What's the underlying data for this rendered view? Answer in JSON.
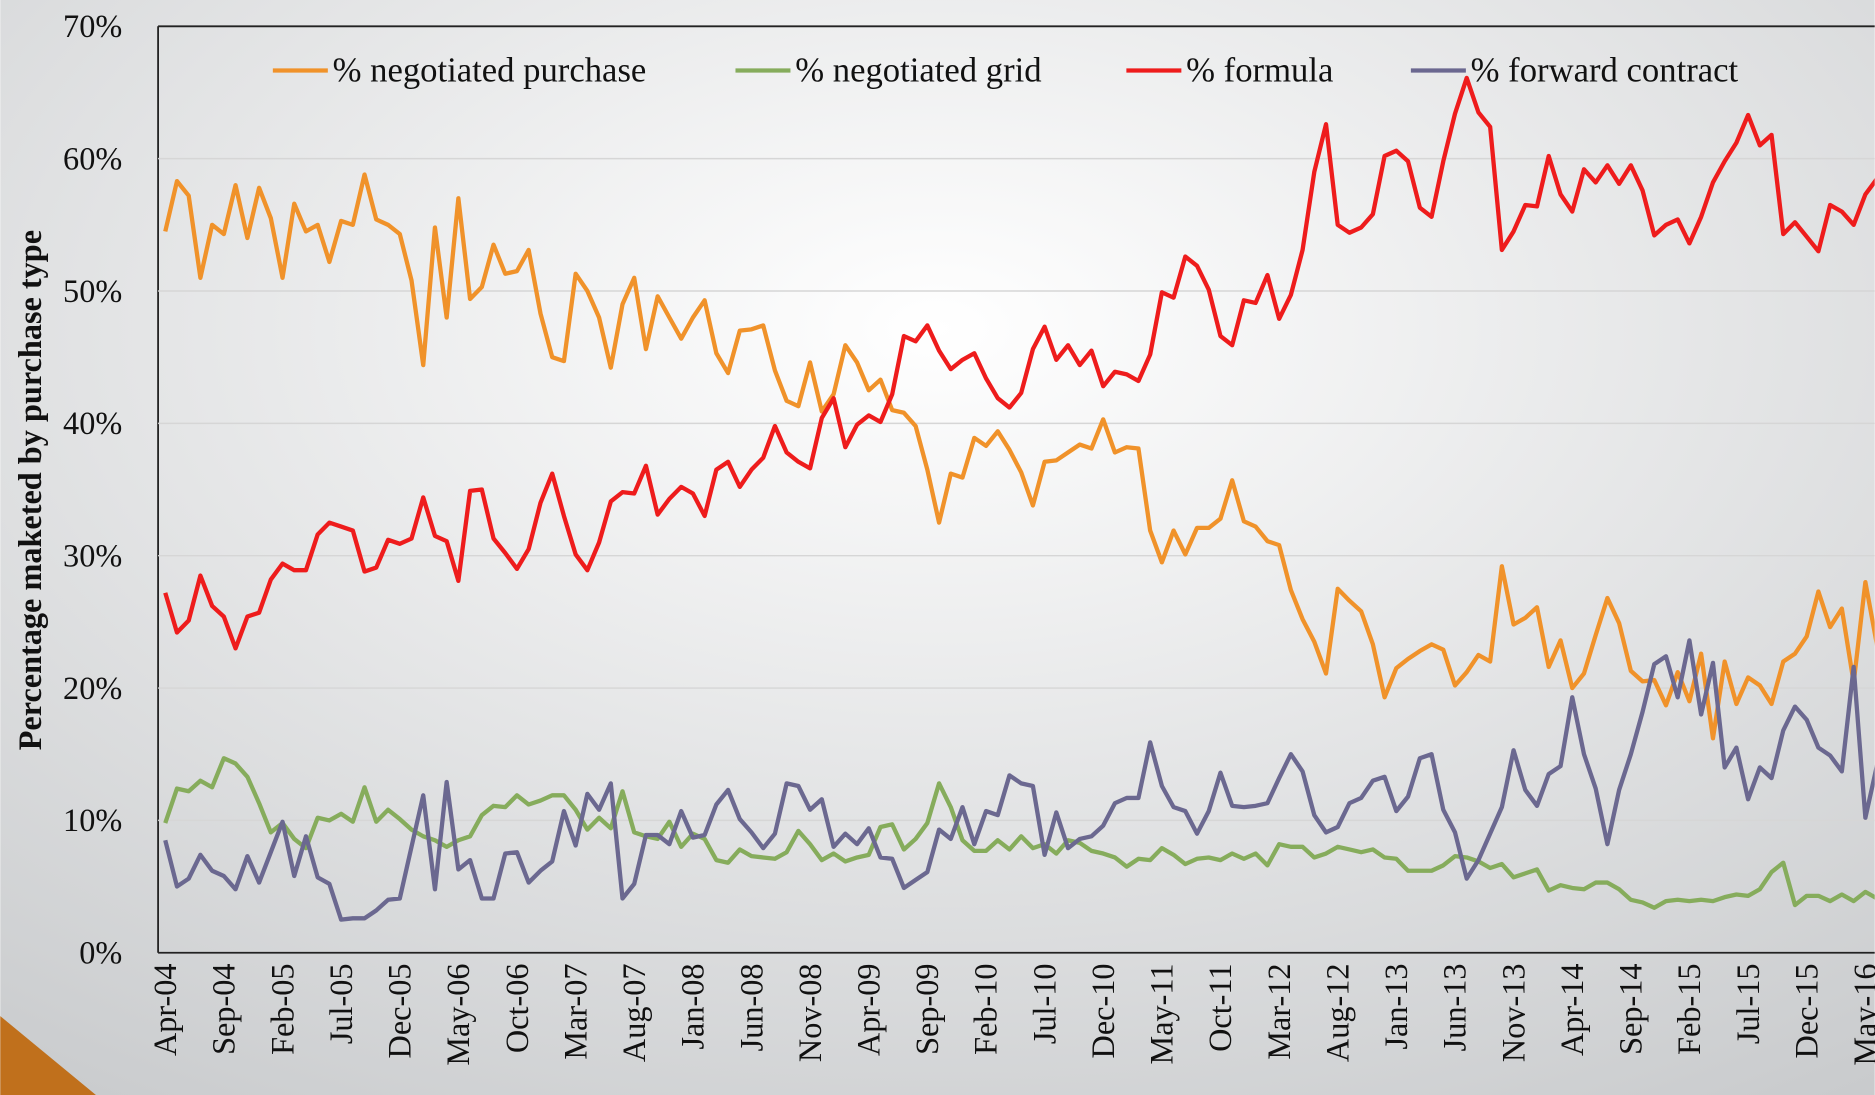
{
  "chart_data": {
    "type": "line",
    "y_label": "Percentage maketed by purchase type",
    "categories": [
      "Apr-04",
      null,
      null,
      null,
      null,
      "Sep-04",
      null,
      null,
      null,
      null,
      "Feb-05",
      null,
      null,
      null,
      null,
      "Jul-05",
      null,
      null,
      null,
      null,
      "Dec-05",
      null,
      null,
      null,
      null,
      "May-06",
      null,
      null,
      null,
      null,
      "Oct-06",
      null,
      null,
      null,
      null,
      "Mar-07",
      null,
      null,
      null,
      null,
      "Aug-07",
      null,
      null,
      null,
      null,
      "Jan-08",
      null,
      null,
      null,
      null,
      "Jun-08",
      null,
      null,
      null,
      null,
      "Nov-08",
      null,
      null,
      null,
      null,
      "Apr-09",
      null,
      null,
      null,
      null,
      "Sep-09",
      null,
      null,
      null,
      null,
      "Feb-10",
      null,
      null,
      null,
      null,
      "Jul-10",
      null,
      null,
      null,
      null,
      "Dec-10",
      null,
      null,
      null,
      null,
      "May-11",
      null,
      null,
      null,
      null,
      "Oct-11",
      null,
      null,
      null,
      null,
      "Mar-12",
      null,
      null,
      null,
      null,
      "Aug-12",
      null,
      null,
      null,
      null,
      "Jan-13",
      null,
      null,
      null,
      null,
      "Jun-13",
      null,
      null,
      null,
      null,
      "Nov-13",
      null,
      null,
      null,
      null,
      "Apr-14",
      null,
      null,
      null,
      null,
      "Sep-14",
      null,
      null,
      null,
      null,
      "Feb-15",
      null,
      null,
      null,
      null,
      "Jul-15",
      null,
      null,
      null,
      null,
      "Dec-15",
      null,
      null,
      null,
      null,
      "May-16",
      null
    ],
    "series": [
      {
        "name": "% negotiated purchase",
        "color": "#f0922a",
        "values": [
          54.5,
          58.3,
          57.2,
          51,
          55,
          54.3,
          58,
          54,
          57.8,
          55.5,
          51,
          56.6,
          54.5,
          55,
          52.2,
          55.3,
          55,
          58.8,
          55.4,
          55,
          54.3,
          50.8,
          44.4,
          54.8,
          48,
          57,
          49.4,
          50.3,
          53.5,
          51.3,
          51.5,
          53.1,
          48.3,
          45,
          44.7,
          51.3,
          50,
          48,
          44.2,
          49,
          51,
          45.6,
          49.6,
          48,
          46.4,
          48,
          49.3,
          45.3,
          43.8,
          47,
          47.1,
          47.4,
          44,
          41.7,
          41.3,
          44.6,
          40.9,
          42.2,
          45.9,
          44.6,
          42.5,
          43.3,
          41,
          40.8,
          39.8,
          36.5,
          32.5,
          36.2,
          35.9,
          38.9,
          38.3,
          39.4,
          38,
          36.3,
          33.8,
          37.1,
          37.2,
          37.8,
          38.4,
          38.1,
          40.3,
          37.8,
          38.2,
          38.1,
          31.9,
          29.5,
          31.9,
          30.1,
          32.1,
          32.1,
          32.8,
          35.7,
          32.6,
          32.2,
          31.1,
          30.8,
          27.4,
          25.2,
          23.5,
          21.1,
          27.5,
          26.6,
          25.8,
          23.3,
          19.3,
          21.5,
          22.2,
          22.8,
          23.3,
          22.9,
          20.2,
          21.2,
          22.5,
          22,
          29.2,
          24.8,
          25.3,
          26.1,
          21.6,
          23.6,
          20,
          21.1,
          24,
          26.8,
          24.9,
          21.3,
          20.5,
          20.6,
          18.7,
          21.2,
          19,
          22.6,
          16.2,
          22,
          18.8,
          20.8,
          20.2,
          18.8,
          22,
          22.6,
          23.9,
          27.3,
          24.6,
          26,
          20.4,
          28,
          23.2
        ]
      },
      {
        "name": "% negotiated grid",
        "color": "#86ac5c",
        "values": [
          9.8,
          12.4,
          12.2,
          13,
          12.5,
          14.7,
          14.3,
          13.3,
          11.3,
          9.1,
          9.8,
          8.6,
          7.9,
          10.2,
          10,
          10.5,
          9.9,
          12.5,
          9.9,
          10.8,
          10.1,
          9.3,
          8.8,
          8.5,
          8,
          8.5,
          8.8,
          10.4,
          11.1,
          11,
          11.9,
          11.2,
          11.5,
          11.9,
          11.9,
          10.8,
          9.3,
          10.2,
          9.4,
          12.2,
          9.1,
          8.8,
          8.6,
          9.9,
          8,
          9,
          8.6,
          7,
          6.8,
          7.8,
          7.3,
          7.2,
          7.1,
          7.6,
          9.2,
          8.2,
          7,
          7.5,
          6.9,
          7.2,
          7.4,
          9.5,
          9.7,
          7.8,
          8.6,
          9.8,
          12.8,
          11,
          8.5,
          7.7,
          7.7,
          8.5,
          7.8,
          8.8,
          7.9,
          8.2,
          7.5,
          8.5,
          8.3,
          7.7,
          7.5,
          7.2,
          6.5,
          7.1,
          7,
          7.9,
          7.4,
          6.7,
          7.1,
          7.2,
          7,
          7.5,
          7.1,
          7.5,
          6.6,
          8.2,
          8,
          8,
          7.2,
          7.5,
          8,
          7.8,
          7.6,
          7.8,
          7.2,
          7.1,
          6.2,
          6.2,
          6.2,
          6.6,
          7.3,
          7.2,
          6.9,
          6.4,
          6.7,
          5.7,
          6,
          6.3,
          4.7,
          5.1,
          4.9,
          4.8,
          5.3,
          5.3,
          4.8,
          4,
          3.8,
          3.4,
          3.9,
          4,
          3.9,
          4,
          3.9,
          4.2,
          4.4,
          4.3,
          4.8,
          6.1,
          6.8,
          3.6,
          4.3,
          4.3,
          3.9,
          4.4,
          3.9,
          4.6,
          4.1
        ]
      },
      {
        "name": "% formula",
        "color": "#ee1c1c",
        "values": [
          27.2,
          24.2,
          25.1,
          28.5,
          26.2,
          25.4,
          23,
          25.4,
          25.7,
          28.2,
          29.4,
          28.9,
          28.9,
          31.6,
          32.5,
          32.2,
          31.9,
          28.8,
          29.1,
          31.2,
          30.9,
          31.3,
          34.4,
          31.5,
          31.1,
          28.1,
          34.9,
          35,
          31.3,
          30.2,
          29,
          30.5,
          34,
          36.2,
          33,
          30.1,
          28.9,
          31,
          34.1,
          34.8,
          34.7,
          36.8,
          33.1,
          34.3,
          35.2,
          34.7,
          33,
          36.5,
          37.1,
          35.2,
          36.5,
          37.4,
          39.8,
          37.8,
          37.1,
          36.6,
          40.4,
          41.9,
          38.2,
          39.9,
          40.6,
          40.1,
          42.2,
          46.6,
          46.2,
          47.4,
          45.5,
          44.1,
          44.8,
          45.3,
          43.4,
          41.9,
          41.2,
          42.3,
          45.6,
          47.3,
          44.8,
          45.9,
          44.4,
          45.5,
          42.8,
          43.9,
          43.7,
          43.2,
          45.2,
          49.9,
          49.5,
          52.6,
          51.9,
          50.1,
          46.6,
          45.9,
          49.3,
          49.1,
          51.2,
          47.9,
          49.7,
          53.1,
          59,
          62.6,
          55,
          54.4,
          54.8,
          55.8,
          60.2,
          60.6,
          59.8,
          56.3,
          55.6,
          59.8,
          63.4,
          66.1,
          63.5,
          62.4,
          53.1,
          54.5,
          56.5,
          56.4,
          60.2,
          57.3,
          56,
          59.2,
          58.2,
          59.5,
          58.1,
          59.5,
          57.6,
          54.2,
          55,
          55.4,
          53.6,
          55.6,
          58.2,
          59.8,
          61.2,
          63.3,
          61,
          61.8,
          54.3,
          55.2,
          54.1,
          53,
          56.5,
          56,
          55,
          57.3,
          58.5
        ]
      },
      {
        "name": "% forward contract",
        "color": "#6b6890",
        "values": [
          8.5,
          5,
          5.6,
          7.4,
          6.2,
          5.8,
          4.8,
          7.3,
          5.3,
          7.6,
          9.9,
          5.8,
          8.8,
          5.7,
          5.2,
          2.5,
          2.6,
          2.6,
          3.2,
          4,
          4.1,
          8,
          11.9,
          4.8,
          12.9,
          6.3,
          7,
          4.1,
          4.1,
          7.5,
          7.6,
          5.3,
          6.2,
          6.9,
          10.7,
          8.1,
          12,
          10.8,
          12.8,
          4.1,
          5.2,
          8.9,
          8.9,
          8.2,
          10.7,
          8.7,
          8.9,
          11.2,
          12.3,
          10.1,
          9.1,
          7.9,
          9,
          12.8,
          12.6,
          10.8,
          11.6,
          8,
          9,
          8.2,
          9.4,
          7.2,
          7.1,
          4.9,
          5.5,
          6.1,
          9.3,
          8.6,
          11,
          8.2,
          10.7,
          10.4,
          13.4,
          12.8,
          12.6,
          7.4,
          10.6,
          7.9,
          8.6,
          8.8,
          9.6,
          11.3,
          11.7,
          11.7,
          15.9,
          12.6,
          11,
          10.7,
          9,
          10.7,
          13.6,
          11.1,
          11,
          11.1,
          11.3,
          13.2,
          15,
          13.7,
          10.4,
          9.1,
          9.5,
          11.3,
          11.7,
          13,
          13.3,
          10.7,
          11.8,
          14.7,
          15,
          10.8,
          9.1,
          5.6,
          7,
          9,
          11,
          15.3,
          12.3,
          11.1,
          13.5,
          14.1,
          19.3,
          15,
          12.4,
          8.2,
          12.3,
          15,
          18.2,
          21.8,
          22.4,
          19.3,
          23.6,
          18,
          21.9,
          14,
          15.5,
          11.6,
          14,
          13.2,
          16.8,
          18.6,
          17.6,
          15.5,
          14.9,
          13.7,
          21.6,
          10.2,
          14.2
        ]
      }
    ],
    "ylim": [
      0,
      70
    ],
    "yticks": [
      {
        "value": 0,
        "label": "0%"
      },
      {
        "value": 10,
        "label": "10%"
      },
      {
        "value": 20,
        "label": "20%"
      },
      {
        "value": 30,
        "label": "30%"
      },
      {
        "value": 40,
        "label": "40%"
      },
      {
        "value": 50,
        "label": "50%"
      },
      {
        "value": 60,
        "label": "60%"
      },
      {
        "value": 70,
        "label": "70%"
      }
    ],
    "grid": true,
    "legend": "top"
  }
}
